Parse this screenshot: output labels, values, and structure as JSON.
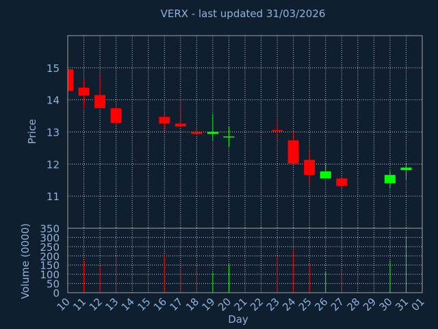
{
  "chart_data": {
    "type": "candlestick",
    "title": "VERX - last updated 31/03/2026",
    "ylabel": "Price",
    "volume_label": "Volume (0000)",
    "xlabel": "Day",
    "categories": [
      "10",
      "11",
      "12",
      "13",
      "14",
      "15",
      "16",
      "17",
      "18",
      "19",
      "20",
      "21",
      "22",
      "23",
      "24",
      "25",
      "26",
      "27",
      "28",
      "29",
      "30",
      "31",
      "01"
    ],
    "open": [
      14.95,
      14.38,
      14.15,
      13.74,
      null,
      null,
      13.47,
      13.26,
      13.0,
      12.94,
      12.83,
      null,
      null,
      13.06,
      12.74,
      12.13,
      11.55,
      11.55,
      null,
      null,
      11.4,
      11.81,
      null
    ],
    "high": [
      14.95,
      14.62,
      14.77,
      13.91,
      null,
      null,
      13.53,
      14.0,
      13.28,
      13.55,
      13.17,
      null,
      null,
      13.43,
      13.0,
      12.38,
      12.0,
      11.55,
      null,
      null,
      11.79,
      12.0,
      null
    ],
    "low": [
      14.28,
      13.74,
      13.74,
      13.19,
      null,
      null,
      13.06,
      13.17,
      12.9,
      12.74,
      12.53,
      null,
      null,
      12.74,
      12.02,
      11.4,
      11.55,
      11.26,
      null,
      null,
      11.26,
      11.51,
      null
    ],
    "close": [
      14.28,
      14.13,
      13.74,
      13.28,
      null,
      null,
      13.26,
      13.17,
      12.94,
      13.0,
      12.86,
      null,
      null,
      13.02,
      12.02,
      11.66,
      11.77,
      11.32,
      null,
      null,
      11.66,
      11.89,
      null
    ],
    "volume": [
      null,
      175,
      145,
      200,
      null,
      null,
      210,
      130,
      145,
      108,
      153,
      null,
      null,
      197,
      230,
      156,
      115,
      123,
      null,
      null,
      175,
      300,
      null
    ],
    "ylim": [
      10,
      16
    ],
    "yticks": [
      11,
      12,
      13,
      14,
      15
    ],
    "volume_lim": [
      0,
      350
    ],
    "volume_ticks": [
      0,
      50,
      100,
      150,
      200,
      250,
      300,
      350
    ],
    "up_color": "#00ff00",
    "down_color": "#ff0000",
    "title_color": "#ffff00",
    "grid": true
  }
}
